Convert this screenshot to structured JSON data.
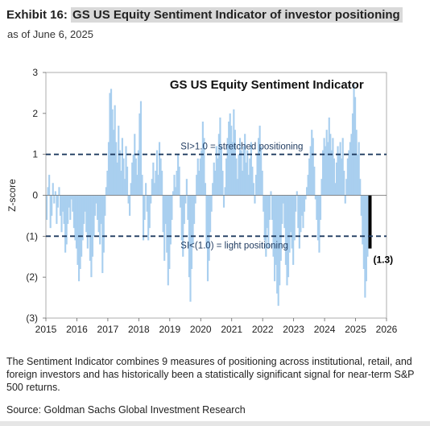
{
  "header": {
    "exhibit_label": "Exhibit 16:",
    "exhibit_title": "GS US Equity Sentiment Indicator of investor positioning",
    "as_of": "as of June 6, 2025"
  },
  "note": "The Sentiment Indicator combines 9 measures of positioning across institutional, retail, and foreign investors and has historically been a statistically significant signal for near-term S&P 500 returns.",
  "source": "Source: Goldman Sachs Global Investment Research",
  "colors": {
    "bars": "#a9cfef",
    "latest_bar": "#000000",
    "threshold": "#1f3a5f",
    "axis_text": "#222222"
  },
  "chart_data": {
    "type": "bar",
    "title": "GS US Equity  Sentiment Indicator",
    "ylabel": "Z-score",
    "xlabel": "",
    "xlim": [
      2015,
      2026
    ],
    "ylim": [
      -3,
      3
    ],
    "x_ticks": [
      "2015",
      "2016",
      "2017",
      "2018",
      "2019",
      "2020",
      "2021",
      "2022",
      "2023",
      "2024",
      "2025",
      "2026"
    ],
    "y_ticks": [
      "3",
      "2",
      "1",
      "0",
      "(1)",
      "(2)",
      "(3)"
    ],
    "y_tick_values": [
      3,
      2,
      1,
      0,
      -1,
      -2,
      -3
    ],
    "thresholds": [
      {
        "value": 1,
        "label": "SI>1.0 = stretched positioning"
      },
      {
        "value": -1,
        "label": "SI<(1.0) = light positioning"
      }
    ],
    "latest": {
      "x": 2025.44,
      "value": -1.3,
      "label": "(1.3)"
    },
    "series": [
      {
        "values": [
          [
            2015.0,
            -0.6
          ],
          [
            2015.04,
            0.2
          ],
          [
            2015.08,
            0.5
          ],
          [
            2015.12,
            -0.8
          ],
          [
            2015.16,
            -0.5
          ],
          [
            2015.2,
            0.3
          ],
          [
            2015.24,
            -0.2
          ],
          [
            2015.28,
            0.1
          ],
          [
            2015.32,
            -0.7
          ],
          [
            2015.36,
            -0.3
          ],
          [
            2015.4,
            0.2
          ],
          [
            2015.44,
            -0.5
          ],
          [
            2015.48,
            -0.9
          ],
          [
            2015.52,
            -0.4
          ],
          [
            2015.56,
            -0.7
          ],
          [
            2015.6,
            -1.4
          ],
          [
            2015.64,
            -1.2
          ],
          [
            2015.68,
            -0.7
          ],
          [
            2015.72,
            -0.3
          ],
          [
            2015.76,
            -0.6
          ],
          [
            2015.8,
            -0.1
          ],
          [
            2015.84,
            -0.4
          ],
          [
            2015.88,
            -0.8
          ],
          [
            2015.92,
            -1.1
          ],
          [
            2015.96,
            -1.3
          ],
          [
            2016.0,
            -1.7
          ],
          [
            2016.04,
            -2.1
          ],
          [
            2016.08,
            -1.8
          ],
          [
            2016.12,
            -1.5
          ],
          [
            2016.16,
            -1.1
          ],
          [
            2016.2,
            -0.7
          ],
          [
            2016.24,
            -0.4
          ],
          [
            2016.28,
            -0.9
          ],
          [
            2016.32,
            -1.3
          ],
          [
            2016.36,
            -1.0
          ],
          [
            2016.4,
            -1.6
          ],
          [
            2016.44,
            -2.0
          ],
          [
            2016.48,
            -1.5
          ],
          [
            2016.52,
            -1.0
          ],
          [
            2016.56,
            -0.5
          ],
          [
            2016.6,
            -0.2
          ],
          [
            2016.64,
            -0.6
          ],
          [
            2016.68,
            -0.9
          ],
          [
            2016.72,
            -1.2
          ],
          [
            2016.76,
            -0.7
          ],
          [
            2016.8,
            -1.9
          ],
          [
            2016.84,
            -1.4
          ],
          [
            2016.88,
            -0.5
          ],
          [
            2016.92,
            0.2
          ],
          [
            2016.96,
            0.6
          ],
          [
            2017.0,
            1.3
          ],
          [
            2017.04,
            2.5
          ],
          [
            2017.08,
            2.6
          ],
          [
            2017.12,
            2.1
          ],
          [
            2017.16,
            1.6
          ],
          [
            2017.2,
            2.2
          ],
          [
            2017.24,
            1.3
          ],
          [
            2017.28,
            0.8
          ],
          [
            2017.32,
            1.7
          ],
          [
            2017.36,
            1.1
          ],
          [
            2017.4,
            0.6
          ],
          [
            2017.44,
            1.4
          ],
          [
            2017.48,
            0.9
          ],
          [
            2017.52,
            0.4
          ],
          [
            2017.56,
            1.2
          ],
          [
            2017.6,
            0.7
          ],
          [
            2017.64,
            -0.2
          ],
          [
            2017.68,
            -0.5
          ],
          [
            2017.72,
            0.3
          ],
          [
            2017.76,
            0.8
          ],
          [
            2017.8,
            1.0
          ],
          [
            2017.84,
            1.5
          ],
          [
            2017.88,
            0.9
          ],
          [
            2017.92,
            0.5
          ],
          [
            2017.96,
            1.1
          ],
          [
            2018.0,
            2.0
          ],
          [
            2018.04,
            2.3
          ],
          [
            2018.08,
            0.5
          ],
          [
            2018.12,
            -1.1
          ],
          [
            2018.16,
            -0.6
          ],
          [
            2018.2,
            0.3
          ],
          [
            2018.24,
            -0.4
          ],
          [
            2018.28,
            -1.1
          ],
          [
            2018.32,
            -0.8
          ],
          [
            2018.36,
            -0.2
          ],
          [
            2018.4,
            0.4
          ],
          [
            2018.44,
            0.8
          ],
          [
            2018.48,
            0.3
          ],
          [
            2018.52,
            0.6
          ],
          [
            2018.56,
            1.1
          ],
          [
            2018.6,
            0.5
          ],
          [
            2018.64,
            1.3
          ],
          [
            2018.68,
            0.9
          ],
          [
            2018.72,
            0.6
          ],
          [
            2018.76,
            -0.9
          ],
          [
            2018.8,
            -1.6
          ],
          [
            2018.84,
            -0.7
          ],
          [
            2018.88,
            -1.4
          ],
          [
            2018.92,
            -2.2
          ],
          [
            2018.96,
            -1.8
          ],
          [
            2019.0,
            -1.2
          ],
          [
            2019.04,
            -0.6
          ],
          [
            2019.08,
            0.1
          ],
          [
            2019.12,
            0.5
          ],
          [
            2019.16,
            0.2
          ],
          [
            2019.2,
            0.6
          ],
          [
            2019.24,
            1.0
          ],
          [
            2019.28,
            0.7
          ],
          [
            2019.32,
            -0.3
          ],
          [
            2019.36,
            -1.1
          ],
          [
            2019.4,
            -1.5
          ],
          [
            2019.44,
            -0.7
          ],
          [
            2019.48,
            -0.2
          ],
          [
            2019.52,
            0.4
          ],
          [
            2019.56,
            -0.6
          ],
          [
            2019.6,
            -2.0
          ],
          [
            2019.64,
            -2.6
          ],
          [
            2019.68,
            -1.8
          ],
          [
            2019.72,
            -1.2
          ],
          [
            2019.76,
            -0.7
          ],
          [
            2019.8,
            -0.2
          ],
          [
            2019.84,
            0.5
          ],
          [
            2019.88,
            0.9
          ],
          [
            2019.92,
            0.6
          ],
          [
            2019.96,
            0.9
          ],
          [
            2020.0,
            1.1
          ],
          [
            2020.04,
            1.8
          ],
          [
            2020.08,
            1.4
          ],
          [
            2020.12,
            0.3
          ],
          [
            2020.16,
            -1.3
          ],
          [
            2020.2,
            -2.1
          ],
          [
            2020.24,
            -1.6
          ],
          [
            2020.28,
            -0.9
          ],
          [
            2020.32,
            -0.4
          ],
          [
            2020.36,
            0.3
          ],
          [
            2020.4,
            0.8
          ],
          [
            2020.44,
            0.6
          ],
          [
            2020.48,
            1.2
          ],
          [
            2020.52,
            0.9
          ],
          [
            2020.56,
            1.5
          ],
          [
            2020.6,
            1.9
          ],
          [
            2020.64,
            1.2
          ],
          [
            2020.68,
            0.6
          ],
          [
            2020.72,
            -0.3
          ],
          [
            2020.76,
            0.2
          ],
          [
            2020.8,
            0.9
          ],
          [
            2020.84,
            1.4
          ],
          [
            2020.88,
            1.8
          ],
          [
            2020.92,
            2.0
          ],
          [
            2020.96,
            1.7
          ],
          [
            2021.0,
            1.3
          ],
          [
            2021.04,
            2.1
          ],
          [
            2021.08,
            1.6
          ],
          [
            2021.12,
            0.9
          ],
          [
            2021.16,
            0.4
          ],
          [
            2021.2,
            1.0
          ],
          [
            2021.24,
            1.4
          ],
          [
            2021.28,
            1.1
          ],
          [
            2021.32,
            0.6
          ],
          [
            2021.36,
            1.2
          ],
          [
            2021.4,
            1.5
          ],
          [
            2021.44,
            0.8
          ],
          [
            2021.48,
            1.1
          ],
          [
            2021.52,
            0.5
          ],
          [
            2021.56,
            0.9
          ],
          [
            2021.6,
            1.3
          ],
          [
            2021.64,
            0.7
          ],
          [
            2021.68,
            0.3
          ],
          [
            2021.72,
            -0.2
          ],
          [
            2021.76,
            0.5
          ],
          [
            2021.8,
            1.0
          ],
          [
            2021.84,
            1.4
          ],
          [
            2021.88,
            1.7
          ],
          [
            2021.92,
            1.2
          ],
          [
            2021.96,
            0.6
          ],
          [
            2022.0,
            -0.4
          ],
          [
            2022.04,
            -1.1
          ],
          [
            2022.08,
            -1.5
          ],
          [
            2022.12,
            -0.8
          ],
          [
            2022.16,
            -1.3
          ],
          [
            2022.2,
            -0.6
          ],
          [
            2022.24,
            0.1
          ],
          [
            2022.28,
            -0.6
          ],
          [
            2022.32,
            -1.5
          ],
          [
            2022.36,
            -2.1
          ],
          [
            2022.4,
            -1.7
          ],
          [
            2022.44,
            -2.4
          ],
          [
            2022.48,
            -2.7
          ],
          [
            2022.52,
            -2.2
          ],
          [
            2022.56,
            -1.6
          ],
          [
            2022.6,
            -0.7
          ],
          [
            2022.64,
            -0.2
          ],
          [
            2022.68,
            -0.8
          ],
          [
            2022.72,
            -1.7
          ],
          [
            2022.76,
            -2.2
          ],
          [
            2022.8,
            -2.0
          ],
          [
            2022.84,
            -1.4
          ],
          [
            2022.88,
            -0.9
          ],
          [
            2022.92,
            -1.3
          ],
          [
            2022.96,
            -1.7
          ],
          [
            2023.0,
            -1.1
          ],
          [
            2023.04,
            -0.4
          ],
          [
            2023.08,
            0.1
          ],
          [
            2023.12,
            -0.8
          ],
          [
            2023.16,
            -1.3
          ],
          [
            2023.2,
            -0.9
          ],
          [
            2023.24,
            -0.5
          ],
          [
            2023.28,
            -0.8
          ],
          [
            2023.32,
            -0.4
          ],
          [
            2023.36,
            -0.1
          ],
          [
            2023.4,
            0.2
          ],
          [
            2023.44,
            0.5
          ],
          [
            2023.48,
            0.9
          ],
          [
            2023.52,
            1.2
          ],
          [
            2023.56,
            1.6
          ],
          [
            2023.6,
            1.4
          ],
          [
            2023.64,
            0.7
          ],
          [
            2023.68,
            -0.1
          ],
          [
            2023.72,
            -0.6
          ],
          [
            2023.76,
            -1.1
          ],
          [
            2023.8,
            -1.4
          ],
          [
            2023.84,
            -0.6
          ],
          [
            2023.88,
            0.4
          ],
          [
            2023.92,
            1.1
          ],
          [
            2023.96,
            1.4
          ],
          [
            2024.0,
            1.2
          ],
          [
            2024.04,
            1.6
          ],
          [
            2024.08,
            1.3
          ],
          [
            2024.12,
            1.9
          ],
          [
            2024.16,
            1.5
          ],
          [
            2024.2,
            1.1
          ],
          [
            2024.24,
            1.4
          ],
          [
            2024.28,
            0.9
          ],
          [
            2024.32,
            0.3
          ],
          [
            2024.36,
            0.8
          ],
          [
            2024.4,
            1.2
          ],
          [
            2024.44,
            1.0
          ],
          [
            2024.48,
            1.3
          ],
          [
            2024.52,
            0.9
          ],
          [
            2024.56,
            1.4
          ],
          [
            2024.6,
            0.6
          ],
          [
            2024.64,
            -0.2
          ],
          [
            2024.68,
            0.4
          ],
          [
            2024.72,
            0.9
          ],
          [
            2024.76,
            1.1
          ],
          [
            2024.8,
            1.3
          ],
          [
            2024.84,
            1.5
          ],
          [
            2024.88,
            2.0
          ],
          [
            2024.92,
            2.7
          ],
          [
            2024.96,
            2.4
          ],
          [
            2025.0,
            1.6
          ],
          [
            2025.04,
            1.0
          ],
          [
            2025.08,
            1.3
          ],
          [
            2025.12,
            0.4
          ],
          [
            2025.16,
            -0.5
          ],
          [
            2025.2,
            -1.2
          ],
          [
            2025.24,
            -1.8
          ],
          [
            2025.28,
            -2.5
          ],
          [
            2025.32,
            -2.1
          ],
          [
            2025.36,
            -1.5
          ],
          [
            2025.4,
            -1.1
          ]
        ]
      }
    ]
  }
}
